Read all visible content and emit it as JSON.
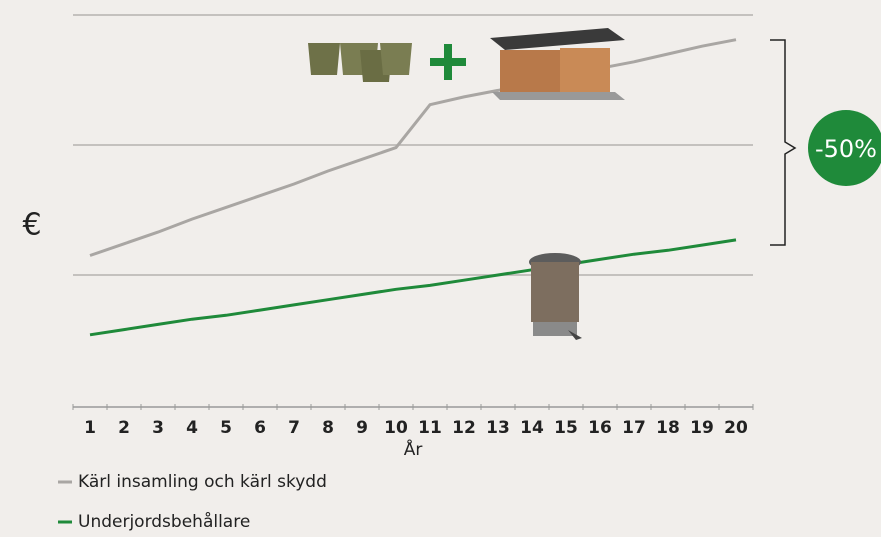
{
  "chart_data": {
    "type": "line",
    "y_label": "€",
    "x_label": "År",
    "categories": [
      "1",
      "2",
      "3",
      "4",
      "5",
      "6",
      "7",
      "8",
      "9",
      "10",
      "11",
      "12",
      "13",
      "14",
      "15",
      "16",
      "17",
      "18",
      "19",
      "20"
    ],
    "series": [
      {
        "name": "Kärl insamling och kärl skydd",
        "color": "#a9a6a3",
        "values": [
          1.15,
          1.24,
          1.33,
          1.43,
          1.52,
          1.61,
          1.7,
          1.8,
          1.89,
          1.98,
          2.31,
          2.37,
          2.42,
          2.48,
          2.53,
          2.59,
          2.64,
          2.7,
          2.76,
          2.81
        ]
      },
      {
        "name": "Underjordsbehållare",
        "color": "#1f8a3a",
        "values": [
          0.54,
          0.58,
          0.62,
          0.66,
          0.69,
          0.73,
          0.77,
          0.81,
          0.85,
          0.89,
          0.92,
          0.96,
          1.0,
          1.04,
          1.08,
          1.12,
          1.16,
          1.19,
          1.23,
          1.27
        ]
      }
    ],
    "ylim": [
      0,
      3
    ],
    "annotation": "-50%"
  }
}
